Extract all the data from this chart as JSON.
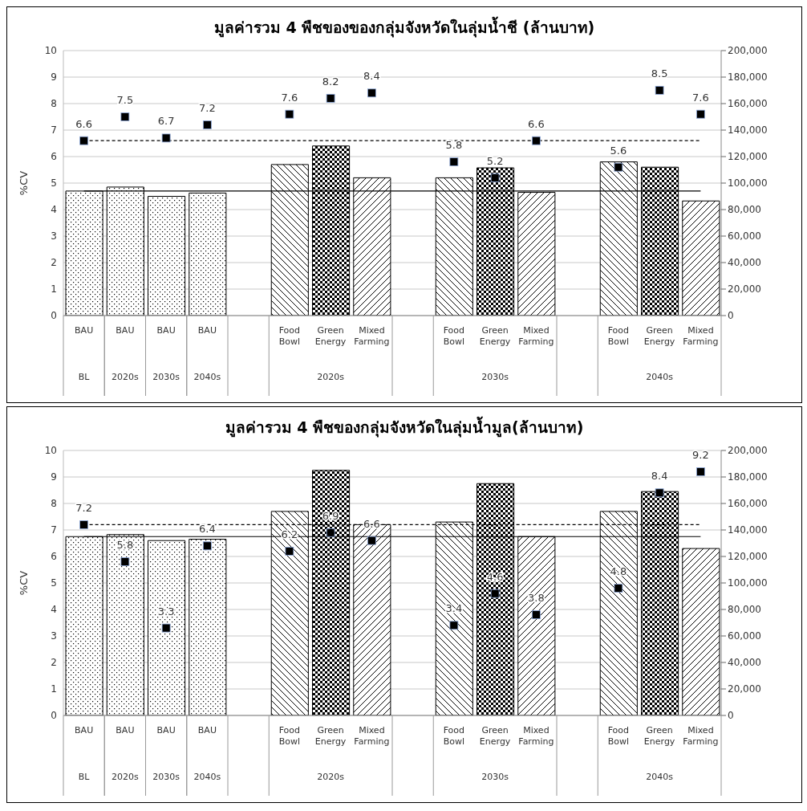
{
  "chart_data": [
    {
      "type": "bar",
      "title": "มูลค่ารวม 4 พืชของของกลุ่มจังหวัดในลุ่มน้ำชี (ล้านบาท)",
      "ylabel": "%CV",
      "categories": [
        "BAU",
        "BAU",
        "BAU",
        "BAU",
        null,
        "Food Bowl",
        "Green Energy",
        "Mixed Farming",
        null,
        "Food Bowl",
        "Green Energy",
        "Mixed Farming",
        null,
        "Food Bowl",
        "Green Energy",
        "Mixed Farming"
      ],
      "annotations": [
        "BL",
        "2020s",
        "2030s",
        "2040s",
        "2020s",
        "2030s",
        "2040s"
      ],
      "series": [
        {
          "axis": "y2",
          "color": "#000000",
          "values": [
            94000,
            97000,
            90000,
            92500,
            null,
            114000,
            128000,
            104000,
            null,
            104000,
            111500,
            93000,
            null,
            116000,
            112000,
            86500
          ]
        },
        {
          "type": "scatter",
          "color": "#000000",
          "values": [
            6.6,
            7.5,
            6.7,
            7.2,
            null,
            7.6,
            8.2,
            8.4,
            null,
            5.8,
            5.2,
            6.6,
            null,
            5.6,
            8.5,
            7.6
          ],
          "value_labels": [
            "6.6",
            "7.5",
            "6.7",
            "7.2",
            null,
            "7.6",
            "8.2",
            "8.4",
            null,
            "5.8",
            "5.2",
            "6.6",
            null,
            "5.6",
            "8.5",
            "7.6"
          ]
        }
      ],
      "marker": "square",
      "grid": "y",
      "ylim": [
        0,
        10
      ],
      "yticks": [
        0,
        1,
        2,
        3,
        4,
        5,
        6,
        7,
        8,
        9,
        10
      ],
      "y2lim": [
        0,
        200000
      ],
      "y2ticks": [
        0,
        {
          "value": 20000,
          "label": "20,000"
        },
        {
          "value": 40000,
          "label": "40,000"
        },
        {
          "value": 60000,
          "label": "60,000"
        },
        {
          "value": 80000,
          "label": "80,000"
        },
        {
          "value": 100000,
          "label": "100,000"
        },
        {
          "value": 120000,
          "label": "120,000"
        },
        {
          "value": 140000,
          "label": "140,000"
        },
        {
          "value": 160000,
          "label": "160,000"
        },
        {
          "value": 180000,
          "label": "180,000"
        },
        {
          "value": 200000,
          "label": "200,000"
        }
      ],
      "ref_lines": [
        {
          "axis": "y2",
          "value": 94000,
          "color": "#000000",
          "line_style": "solid"
        },
        {
          "axis": "y",
          "value": 6.6,
          "color": "#000000",
          "line_style": "dashed"
        }
      ]
    },
    {
      "type": "bar",
      "title": "มูลค่ารวม 4 พืชของกลุ่มจังหวัดในลุ่มน้ำมูล(ล้านบาท)",
      "ylabel": "%CV",
      "categories": [
        "BAU",
        "BAU",
        "BAU",
        "BAU",
        null,
        "Food Bowl",
        "Green Energy",
        "Mixed Farming",
        null,
        "Food Bowl",
        "Green Energy",
        "Mixed Farming",
        null,
        "Food Bowl",
        "Green Energy",
        "Mixed Farming"
      ],
      "annotations": [
        "BL",
        "2020s",
        "2030s",
        "2040s",
        "2020s",
        "2030s",
        "2040s"
      ],
      "series": [
        {
          "axis": "y2",
          "color": "#000000",
          "values": [
            135000,
            136500,
            132000,
            133000,
            null,
            154000,
            185000,
            144000,
            null,
            146000,
            175000,
            135000,
            null,
            154000,
            169000,
            126000
          ]
        },
        {
          "type": "scatter",
          "color": "#000000",
          "values": [
            7.2,
            5.8,
            3.3,
            6.4,
            null,
            6.2,
            6.9,
            6.6,
            null,
            3.4,
            4.6,
            3.8,
            null,
            4.8,
            8.4,
            9.2
          ],
          "value_labels": [
            "7.2",
            "5.8",
            "3.3",
            "6.4",
            null,
            "6.2",
            "6.9",
            "6.6",
            null,
            "3.4",
            "4.6",
            "3.8",
            null,
            "4.8",
            "8.4",
            "9.2"
          ]
        }
      ],
      "marker": "square",
      "grid": "y",
      "ylim": [
        0,
        10
      ],
      "yticks": [
        0,
        1,
        2,
        3,
        4,
        5,
        6,
        7,
        8,
        9,
        10
      ],
      "y2lim": [
        0,
        200000
      ],
      "y2ticks": [
        0,
        {
          "value": 20000,
          "label": "20,000"
        },
        {
          "value": 40000,
          "label": "40,000"
        },
        {
          "value": 60000,
          "label": "60,000"
        },
        {
          "value": 80000,
          "label": "80,000"
        },
        {
          "value": 100000,
          "label": "100,000"
        },
        {
          "value": 120000,
          "label": "120,000"
        },
        {
          "value": 140000,
          "label": "140,000"
        },
        {
          "value": 160000,
          "label": "160,000"
        },
        {
          "value": 180000,
          "label": "180,000"
        },
        {
          "value": 200000,
          "label": "200,000"
        }
      ],
      "ref_lines": [
        {
          "axis": "y2",
          "value": 135000,
          "color": "#000000",
          "line_style": "solid"
        },
        {
          "axis": "y",
          "value": 7.2,
          "color": "#000000",
          "line_style": "dashed"
        }
      ]
    }
  ]
}
